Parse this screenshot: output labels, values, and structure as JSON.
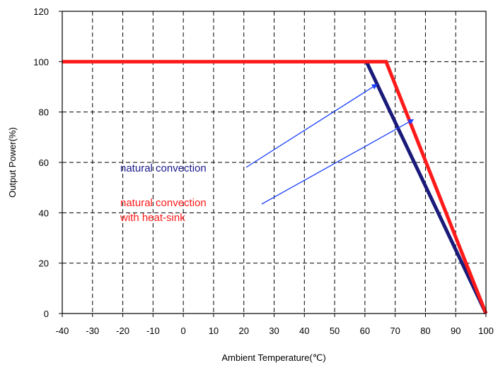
{
  "chart_data": {
    "type": "line",
    "title": "",
    "xlabel": "Ambient Temperature(℃)",
    "ylabel": "Output Power(%)",
    "xlim": [
      -40,
      100
    ],
    "ylim": [
      0,
      120
    ],
    "xticks": [
      -40,
      -30,
      -20,
      -10,
      0,
      10,
      20,
      30,
      40,
      50,
      60,
      70,
      80,
      90,
      100
    ],
    "yticks": [
      0,
      20,
      40,
      60,
      80,
      100,
      120
    ],
    "grid": true,
    "series": [
      {
        "name": "natural convection",
        "color": "#1a1a7a",
        "x": [
          60.5,
          100
        ],
        "y": [
          100,
          0
        ]
      },
      {
        "name": "natural convection with heat-sink",
        "color": "#ff1a1a",
        "x": [
          -40,
          67,
          100
        ],
        "y": [
          100,
          100,
          0
        ]
      }
    ],
    "annotations": [
      {
        "lines": [
          "natural convection"
        ],
        "color": "#1a1a8c",
        "arrow_to": [
          64,
          91
        ]
      },
      {
        "lines": [
          "natural convection",
          "with heat-sink"
        ],
        "color": "#ff1a1a",
        "arrow_to": [
          76,
          77
        ]
      }
    ]
  }
}
